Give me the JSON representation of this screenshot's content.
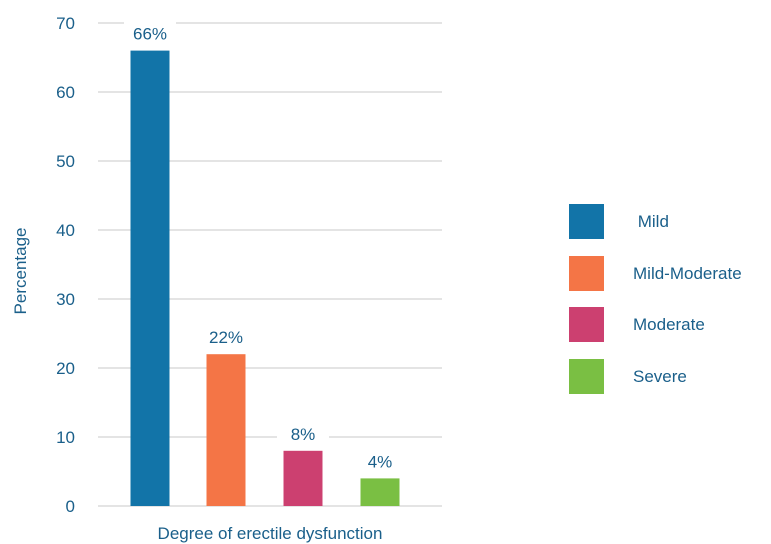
{
  "chart_data": {
    "type": "bar",
    "categories": [
      "Mild",
      "Mild-Moderate",
      "Moderate",
      "Severe"
    ],
    "values": [
      66,
      22,
      8,
      4
    ],
    "data_labels": [
      "66%",
      "22%",
      "8%",
      "4%"
    ],
    "colors": [
      "#1274a8",
      "#f47546",
      "#cc4070",
      "#7abf43"
    ],
    "title": "",
    "xlabel": "Degree of erectile dysfunction",
    "ylabel": "Percentage",
    "ylim": [
      0,
      70
    ],
    "yticks": [
      0,
      10,
      20,
      30,
      40,
      50,
      60,
      70
    ],
    "grid": true,
    "legend": {
      "position": "right",
      "entries": [
        " Mild",
        "Mild-Moderate",
        "Moderate",
        "Severe"
      ]
    }
  }
}
